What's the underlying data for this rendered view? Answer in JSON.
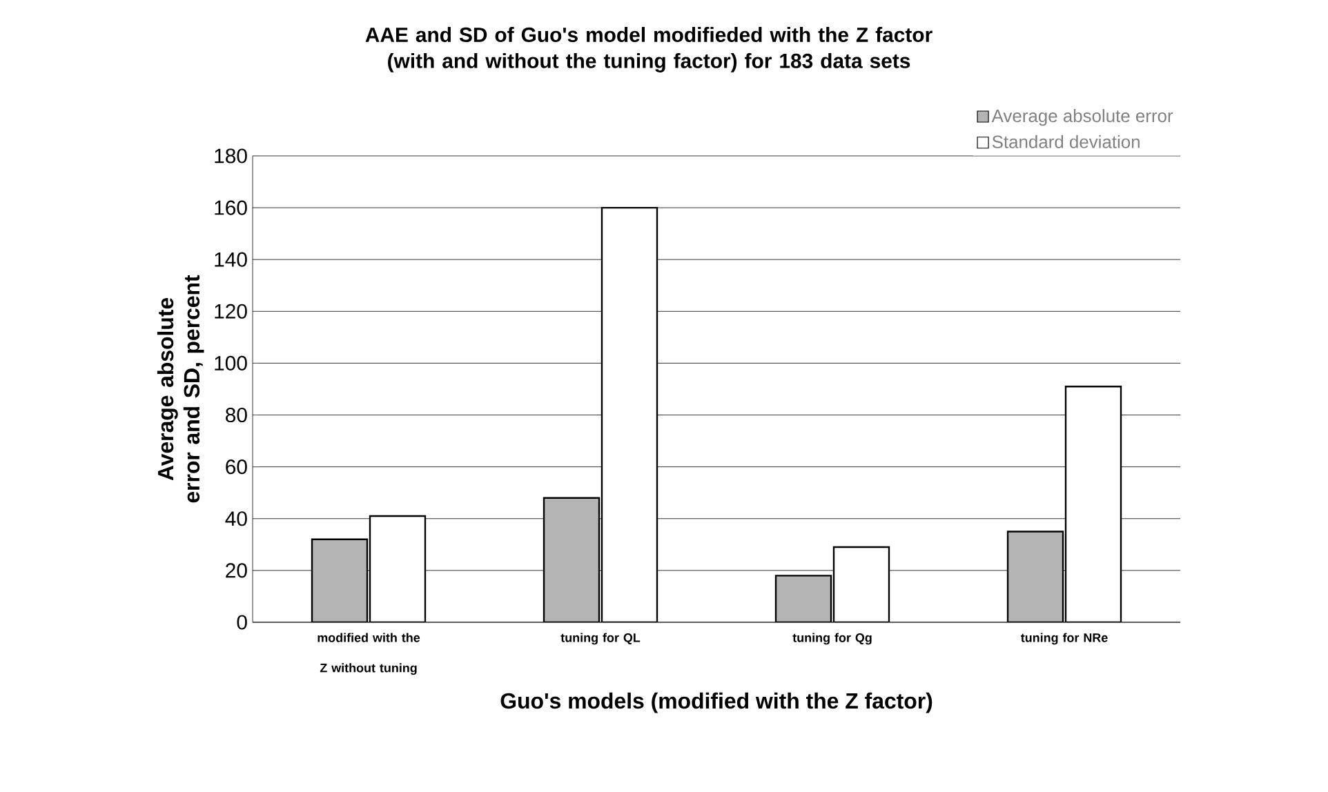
{
  "chart_data": {
    "type": "bar",
    "title": "AAE and SD of Guo's model modifieded with the Z factor (with and without the tuning factor) for 183 data sets",
    "xlabel": "Guo's models (modified with the Z factor)",
    "ylabel": "Average absolute error and SD, percent",
    "categories": [
      "modified with the  Z without tuning",
      "tuning for QL",
      "tuning for Qg",
      "tuning for NRe"
    ],
    "series": [
      {
        "name": "Average absolute error",
        "color": "#b4b4b4",
        "values": [
          32,
          48,
          18,
          35
        ]
      },
      {
        "name": "Standard deviation",
        "color": "#ffffff",
        "values": [
          41,
          160,
          29,
          91
        ]
      }
    ],
    "ylim": [
      0,
      180
    ],
    "yticks": [
      0,
      20,
      40,
      60,
      80,
      100,
      120,
      140,
      160,
      180
    ],
    "grid": "y",
    "legend": "top right"
  }
}
